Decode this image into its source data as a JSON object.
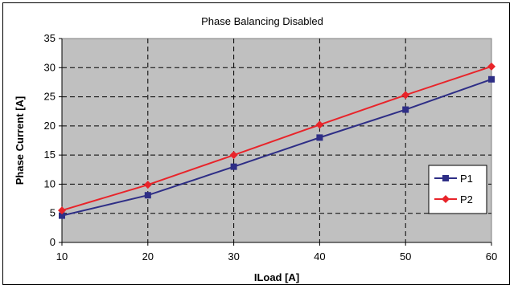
{
  "chart_data": {
    "type": "line",
    "title": "Phase Balancing Disabled",
    "xlabel": "ILoad [A]",
    "ylabel": "Phase Current [A]",
    "x": [
      10,
      20,
      30,
      40,
      50,
      60
    ],
    "xlim": [
      10,
      60
    ],
    "ylim": [
      0,
      35
    ],
    "xticks": [
      10,
      20,
      30,
      40,
      50,
      60
    ],
    "yticks": [
      0,
      5,
      10,
      15,
      20,
      25,
      30,
      35
    ],
    "grid": true,
    "legend_position": "right",
    "plot_background": "#c0c0c0",
    "series": [
      {
        "name": "P1",
        "color": "#2e2e86",
        "marker": "square",
        "values": [
          4.6,
          8.1,
          13.0,
          18.0,
          22.8,
          28.0
        ]
      },
      {
        "name": "P2",
        "color": "#e8242a",
        "marker": "diamond",
        "values": [
          5.5,
          9.9,
          15.0,
          20.2,
          25.3,
          30.2
        ]
      }
    ]
  }
}
